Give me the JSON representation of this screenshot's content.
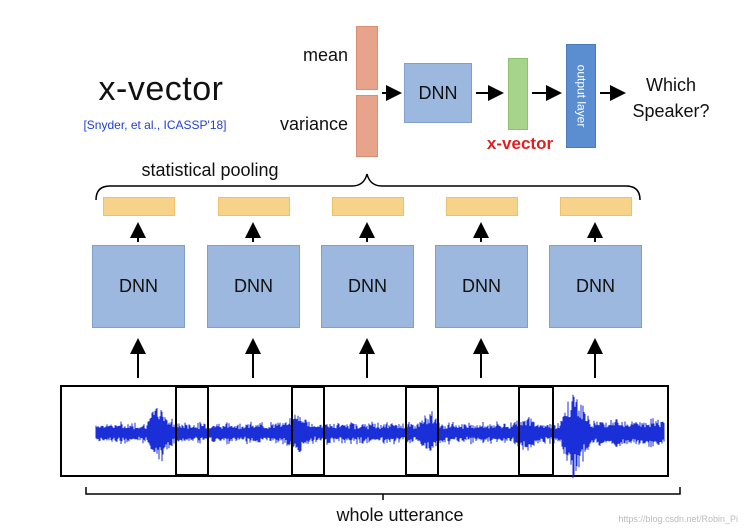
{
  "title": "x-vector",
  "citation": "[Snyder, et al., ICASSP'18]",
  "stats": {
    "mean_label": "mean",
    "variance_label": "variance"
  },
  "top_dnn_label": "DNN",
  "output_layer_label": "output layer",
  "xvector_label": "x-vector",
  "question": {
    "line1": "Which",
    "line2": "Speaker?"
  },
  "pooling_label": "statistical pooling",
  "frame_dnns": [
    {
      "label": "DNN"
    },
    {
      "label": "DNN"
    },
    {
      "label": "DNN"
    },
    {
      "label": "DNN"
    },
    {
      "label": "DNN"
    }
  ],
  "utterance_label": "whole utterance",
  "watermark": "https://blog.csdn.net/Robin_Pi",
  "colors": {
    "stat_bar": "#e8a48a",
    "dnn_box": "#9cb8de",
    "xvector_bar": "#a6d48a",
    "output_box": "#5a8ed0",
    "feature_bar": "#f7d38a",
    "waveform": "#1a2fd8",
    "xvector_text": "#e02020",
    "citation_text": "#1f3fd6"
  }
}
